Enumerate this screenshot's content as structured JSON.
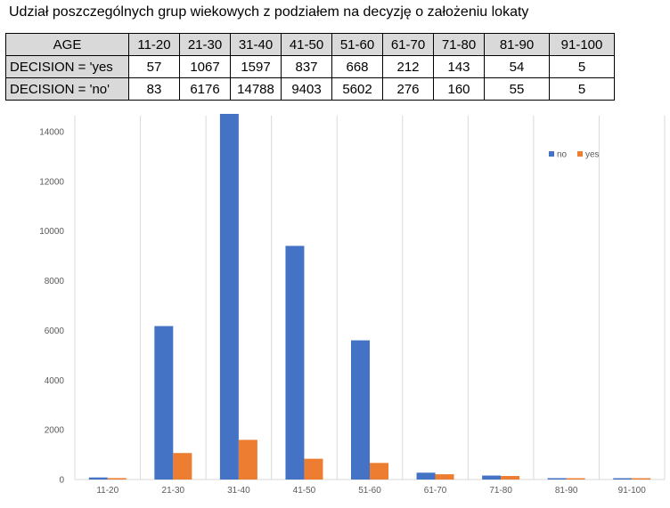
{
  "title": "Udział poszczególnych grup wiekowych z podziałem na decyzję o założeniu lokaty",
  "table": {
    "header_label": "AGE",
    "columns": [
      "11-20",
      "21-30",
      "31-40",
      "41-50",
      "51-60",
      "61-70",
      "71-80",
      "81-90",
      "91-100"
    ],
    "rows": [
      {
        "label": "DECISION = 'yes",
        "values": [
          "57",
          "1067",
          "1597",
          "837",
          "668",
          "212",
          "143",
          "54",
          "5"
        ]
      },
      {
        "label": "DECISION = 'no'",
        "values": [
          "83",
          "6176",
          "14788",
          "9403",
          "5602",
          "276",
          "160",
          "55",
          "5"
        ]
      }
    ]
  },
  "chart_data": {
    "type": "bar",
    "categories": [
      "11-20",
      "21-30",
      "31-40",
      "41-50",
      "51-60",
      "61-70",
      "71-80",
      "81-90",
      "91-100"
    ],
    "series": [
      {
        "name": "no",
        "color": "#4472c4",
        "values": [
          83,
          6176,
          14788,
          9403,
          5602,
          276,
          160,
          55,
          5
        ]
      },
      {
        "name": "yes",
        "color": "#ed7d31",
        "values": [
          57,
          1067,
          1597,
          837,
          668,
          212,
          143,
          54,
          5
        ]
      }
    ],
    "ylim": [
      0,
      14000
    ],
    "yticks": [
      "0",
      "2000",
      "4000",
      "6000",
      "8000",
      "10000",
      "12000",
      "14000"
    ],
    "grid": "vertical",
    "legend_position": "top-right"
  }
}
